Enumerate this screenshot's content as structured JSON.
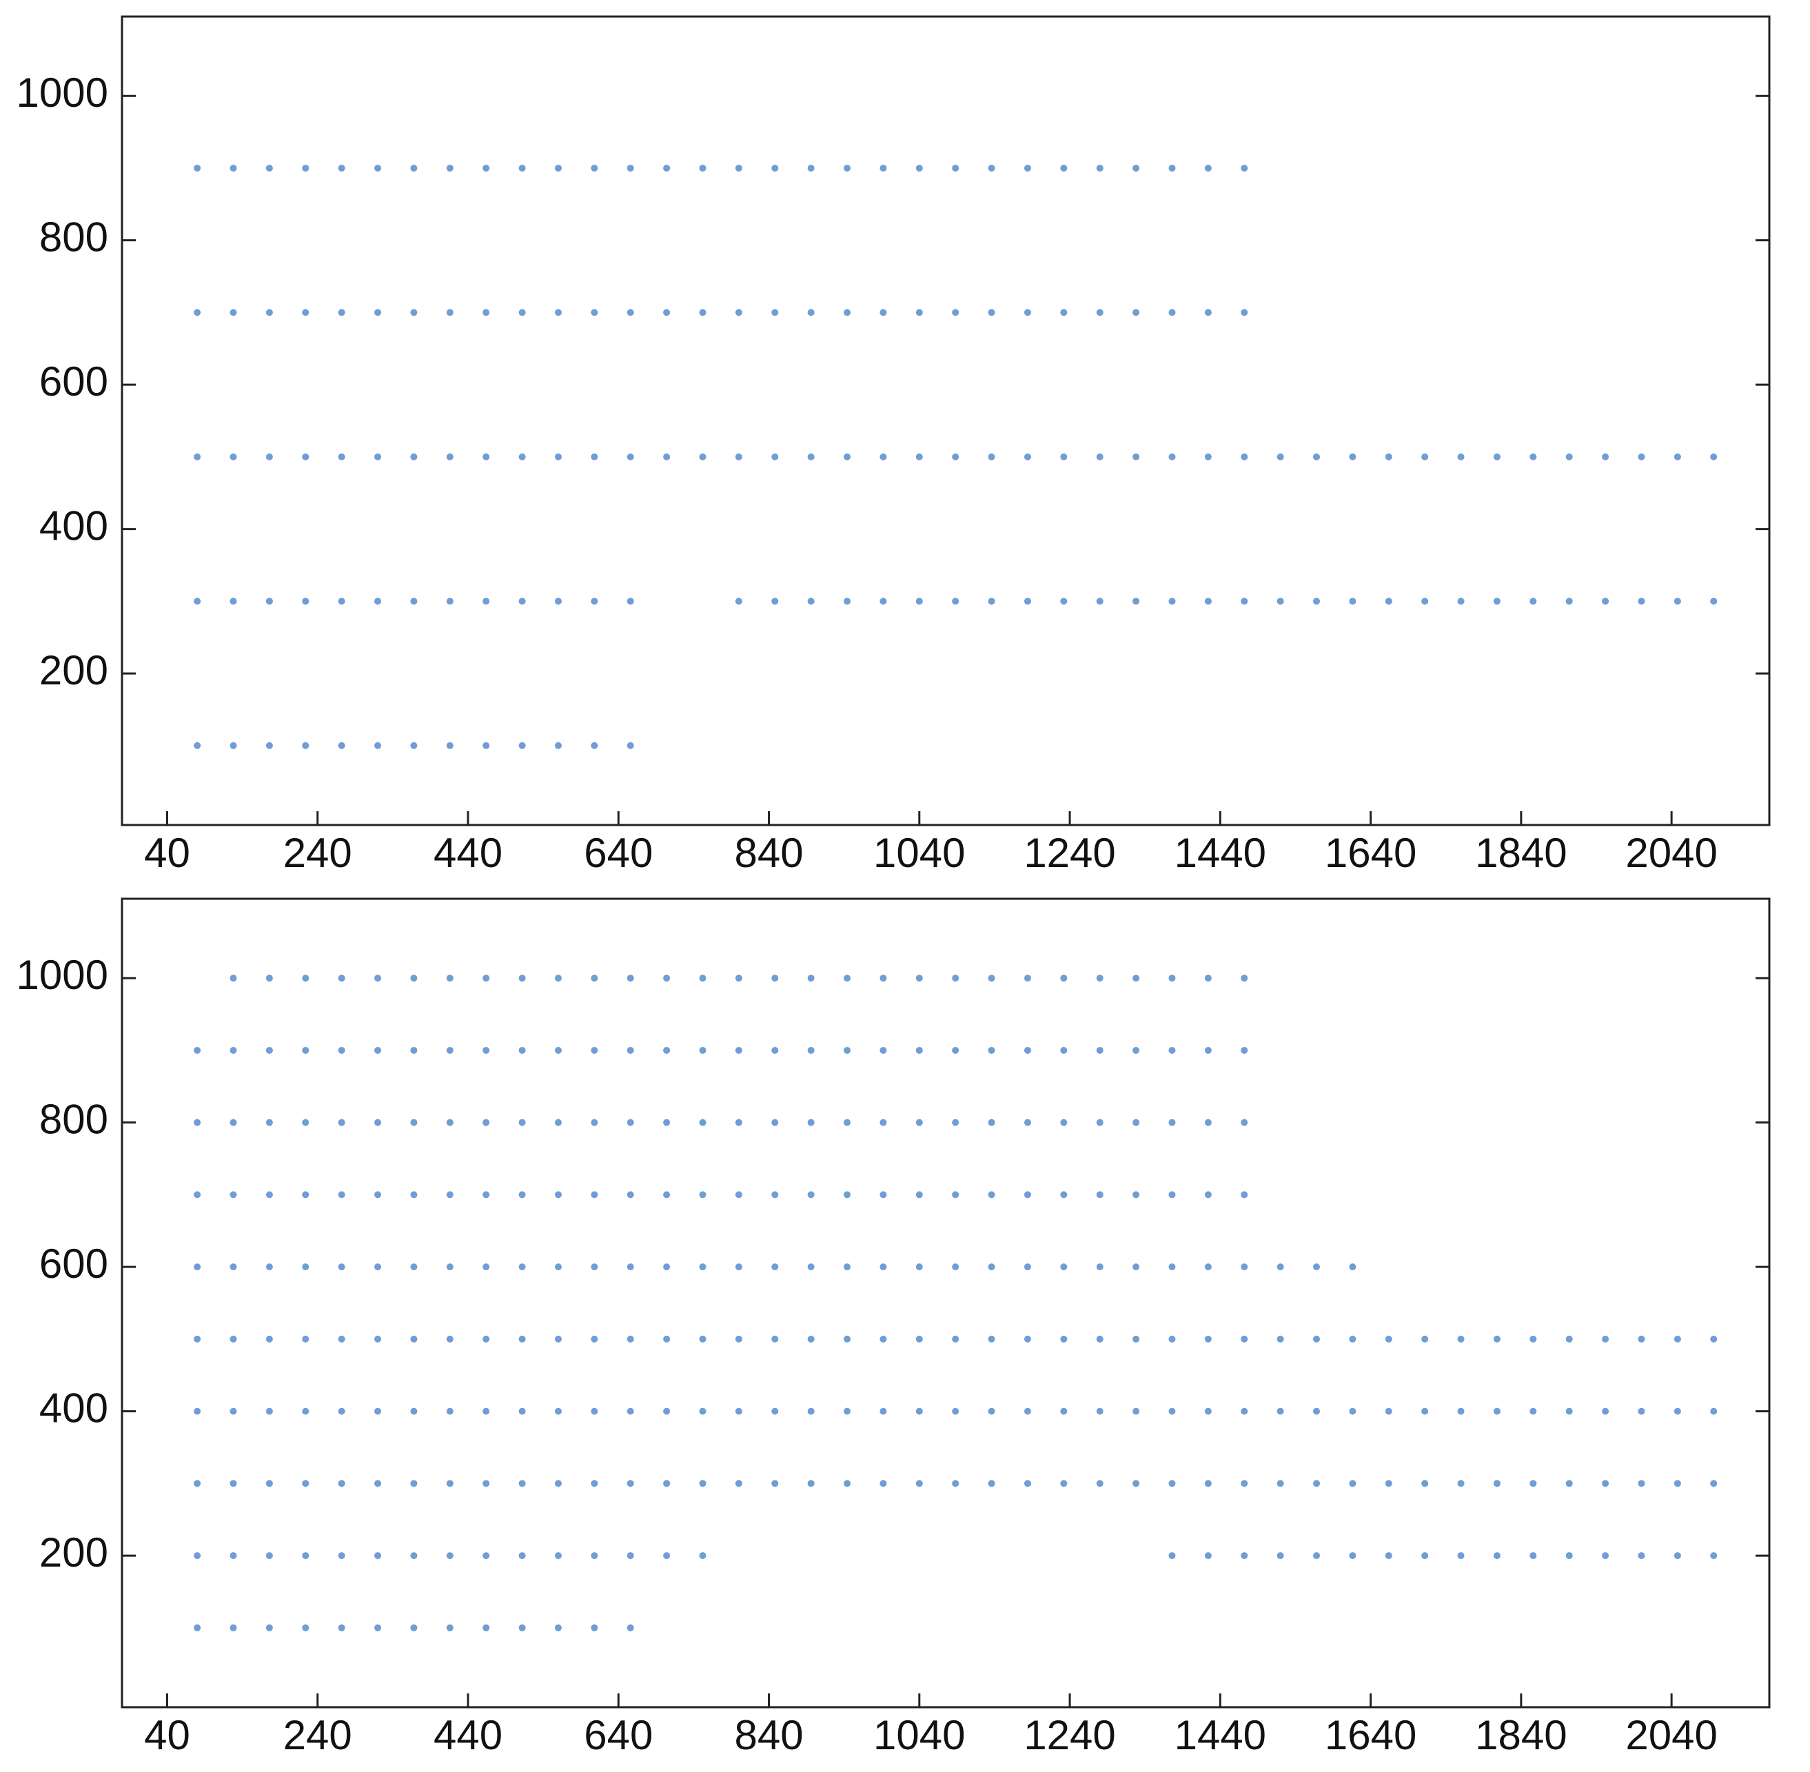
{
  "chart_data": [
    {
      "type": "scatter",
      "color": "#4a86c8",
      "xlim": [
        -20,
        2170
      ],
      "ylim": [
        -10,
        1110
      ],
      "xticks": [
        40,
        240,
        440,
        640,
        840,
        1040,
        1240,
        1440,
        1640,
        1840,
        2040
      ],
      "yticks": [
        200,
        400,
        600,
        800,
        1000
      ],
      "x": [
        80,
        80,
        80,
        80,
        80,
        128,
        128,
        128,
        128,
        128,
        176,
        176,
        176,
        176,
        176,
        224,
        224,
        224,
        224,
        224,
        272,
        272,
        272,
        272,
        272,
        320,
        320,
        320,
        320,
        320,
        368,
        368,
        368,
        368,
        368,
        416,
        416,
        416,
        416,
        416,
        464,
        464,
        464,
        464,
        464,
        512,
        512,
        512,
        512,
        512,
        560,
        560,
        560,
        560,
        560,
        608,
        608,
        608,
        608,
        608,
        656,
        656,
        656,
        656,
        656,
        704,
        704,
        704,
        752,
        752,
        752,
        800,
        800,
        800,
        800,
        848,
        848,
        848,
        848,
        896,
        896,
        896,
        896,
        944,
        944,
        944,
        944,
        992,
        992,
        992,
        992,
        1040,
        1040,
        1040,
        1040,
        1088,
        1088,
        1088,
        1088,
        1136,
        1136,
        1136,
        1136,
        1184,
        1184,
        1184,
        1184,
        1232,
        1232,
        1232,
        1232,
        1280,
        1280,
        1280,
        1280,
        1328,
        1328,
        1328,
        1328,
        1376,
        1376,
        1376,
        1376,
        1424,
        1424,
        1424,
        1424,
        1472,
        1472,
        1472,
        1472,
        1520,
        1520,
        1568,
        1568,
        1616,
        1616,
        1664,
        1664,
        1712,
        1712,
        1760,
        1760,
        1808,
        1808,
        1856,
        1856,
        1904,
        1904,
        1952,
        1952,
        2000,
        2000,
        2048,
        2048,
        2096,
        2096
      ],
      "y": [
        100,
        300,
        500,
        700,
        900,
        100,
        300,
        500,
        700,
        900,
        100,
        300,
        500,
        700,
        900,
        100,
        300,
        500,
        700,
        900,
        100,
        300,
        500,
        700,
        900,
        100,
        300,
        500,
        700,
        900,
        100,
        300,
        500,
        700,
        900,
        100,
        300,
        500,
        700,
        900,
        100,
        300,
        500,
        700,
        900,
        100,
        300,
        500,
        700,
        900,
        100,
        300,
        500,
        700,
        900,
        100,
        300,
        500,
        700,
        900,
        100,
        300,
        500,
        700,
        900,
        500,
        700,
        900,
        500,
        700,
        900,
        300,
        500,
        700,
        900,
        300,
        500,
        700,
        900,
        300,
        500,
        700,
        900,
        300,
        500,
        700,
        900,
        300,
        500,
        700,
        900,
        300,
        500,
        700,
        900,
        300,
        500,
        700,
        900,
        300,
        500,
        700,
        900,
        300,
        500,
        700,
        900,
        300,
        500,
        700,
        900,
        300,
        500,
        700,
        900,
        300,
        500,
        700,
        900,
        300,
        500,
        700,
        900,
        300,
        500,
        700,
        900,
        300,
        500,
        700,
        900,
        300,
        500,
        300,
        500,
        300,
        500,
        300,
        500,
        300,
        500,
        300,
        500,
        300,
        500,
        300,
        500,
        300,
        500,
        300,
        500,
        300,
        500,
        300,
        500,
        300,
        500
      ]
    },
    {
      "type": "scatter",
      "color": "#4a86c8",
      "xlim": [
        -20,
        2170
      ],
      "ylim": [
        -10,
        1110
      ],
      "xticks": [
        40,
        240,
        440,
        640,
        840,
        1040,
        1240,
        1440,
        1640,
        1840,
        2040
      ],
      "yticks": [
        200,
        400,
        600,
        800,
        1000
      ],
      "x": [
        80,
        80,
        80,
        80,
        80,
        80,
        80,
        80,
        80,
        128,
        128,
        128,
        128,
        128,
        128,
        128,
        128,
        128,
        128,
        176,
        176,
        176,
        176,
        176,
        176,
        176,
        176,
        176,
        176,
        224,
        224,
        224,
        224,
        224,
        224,
        224,
        224,
        224,
        224,
        272,
        272,
        272,
        272,
        272,
        272,
        272,
        272,
        272,
        272,
        320,
        320,
        320,
        320,
        320,
        320,
        320,
        320,
        320,
        320,
        368,
        368,
        368,
        368,
        368,
        368,
        368,
        368,
        368,
        368,
        416,
        416,
        416,
        416,
        416,
        416,
        416,
        416,
        416,
        416,
        464,
        464,
        464,
        464,
        464,
        464,
        464,
        464,
        464,
        464,
        512,
        512,
        512,
        512,
        512,
        512,
        512,
        512,
        512,
        512,
        560,
        560,
        560,
        560,
        560,
        560,
        560,
        560,
        560,
        560,
        608,
        608,
        608,
        608,
        608,
        608,
        608,
        608,
        608,
        608,
        656,
        656,
        656,
        656,
        656,
        656,
        656,
        656,
        656,
        656,
        704,
        704,
        704,
        704,
        704,
        704,
        704,
        704,
        704,
        752,
        752,
        752,
        752,
        752,
        752,
        752,
        752,
        752,
        800,
        800,
        800,
        800,
        800,
        800,
        800,
        800,
        848,
        848,
        848,
        848,
        848,
        848,
        848,
        848,
        896,
        896,
        896,
        896,
        896,
        896,
        896,
        896,
        944,
        944,
        944,
        944,
        944,
        944,
        944,
        944,
        992,
        992,
        992,
        992,
        992,
        992,
        992,
        992,
        1040,
        1040,
        1040,
        1040,
        1040,
        1040,
        1040,
        1040,
        1088,
        1088,
        1088,
        1088,
        1088,
        1088,
        1088,
        1088,
        1136,
        1136,
        1136,
        1136,
        1136,
        1136,
        1136,
        1136,
        1184,
        1184,
        1184,
        1184,
        1184,
        1184,
        1184,
        1184,
        1232,
        1232,
        1232,
        1232,
        1232,
        1232,
        1232,
        1232,
        1280,
        1280,
        1280,
        1280,
        1280,
        1280,
        1280,
        1280,
        1328,
        1328,
        1328,
        1328,
        1328,
        1328,
        1328,
        1328,
        1376,
        1376,
        1376,
        1376,
        1376,
        1376,
        1376,
        1376,
        1376,
        1424,
        1424,
        1424,
        1424,
        1424,
        1424,
        1424,
        1424,
        1424,
        1472,
        1472,
        1472,
        1472,
        1472,
        1472,
        1472,
        1472,
        1472,
        1520,
        1520,
        1520,
        1520,
        1520,
        1568,
        1568,
        1568,
        1568,
        1568,
        1616,
        1616,
        1616,
        1616,
        1616,
        1664,
        1664,
        1664,
        1664,
        1712,
        1712,
        1712,
        1712,
        1760,
        1760,
        1760,
        1760,
        1808,
        1808,
        1808,
        1808,
        1856,
        1856,
        1856,
        1856,
        1904,
        1904,
        1904,
        1904,
        1952,
        1952,
        1952,
        1952,
        2000,
        2000,
        2000,
        2000,
        2048,
        2048,
        2048,
        2048,
        2096,
        2096,
        2096,
        2096
      ],
      "y": [
        100,
        200,
        300,
        400,
        500,
        600,
        700,
        800,
        900,
        100,
        200,
        300,
        400,
        500,
        600,
        700,
        800,
        900,
        1000,
        100,
        200,
        300,
        400,
        500,
        600,
        700,
        800,
        900,
        1000,
        100,
        200,
        300,
        400,
        500,
        600,
        700,
        800,
        900,
        1000,
        100,
        200,
        300,
        400,
        500,
        600,
        700,
        800,
        900,
        1000,
        100,
        200,
        300,
        400,
        500,
        600,
        700,
        800,
        900,
        1000,
        100,
        200,
        300,
        400,
        500,
        600,
        700,
        800,
        900,
        1000,
        100,
        200,
        300,
        400,
        500,
        600,
        700,
        800,
        900,
        1000,
        100,
        200,
        300,
        400,
        500,
        600,
        700,
        800,
        900,
        1000,
        100,
        200,
        300,
        400,
        500,
        600,
        700,
        800,
        900,
        1000,
        100,
        200,
        300,
        400,
        500,
        600,
        700,
        800,
        900,
        1000,
        100,
        200,
        300,
        400,
        500,
        600,
        700,
        800,
        900,
        1000,
        100,
        200,
        300,
        400,
        500,
        600,
        700,
        800,
        900,
        1000,
        200,
        300,
        400,
        500,
        600,
        700,
        800,
        900,
        1000,
        200,
        300,
        400,
        500,
        600,
        700,
        800,
        900,
        1000,
        300,
        400,
        500,
        600,
        700,
        800,
        900,
        1000,
        300,
        400,
        500,
        600,
        700,
        800,
        900,
        1000,
        300,
        400,
        500,
        600,
        700,
        800,
        900,
        1000,
        300,
        400,
        500,
        600,
        700,
        800,
        900,
        1000,
        300,
        400,
        500,
        600,
        700,
        800,
        900,
        1000,
        300,
        400,
        500,
        600,
        700,
        800,
        900,
        1000,
        300,
        400,
        500,
        600,
        700,
        800,
        900,
        1000,
        300,
        400,
        500,
        600,
        700,
        800,
        900,
        1000,
        300,
        400,
        500,
        600,
        700,
        800,
        900,
        1000,
        300,
        400,
        500,
        600,
        700,
        800,
        900,
        1000,
        300,
        400,
        500,
        600,
        700,
        800,
        900,
        1000,
        300,
        400,
        500,
        600,
        700,
        800,
        900,
        1000,
        200,
        300,
        400,
        500,
        600,
        700,
        800,
        900,
        1000,
        200,
        300,
        400,
        500,
        600,
        700,
        800,
        900,
        1000,
        200,
        300,
        400,
        500,
        600,
        700,
        800,
        900,
        1000,
        200,
        300,
        400,
        500,
        600,
        200,
        300,
        400,
        500,
        600,
        200,
        300,
        400,
        500,
        600,
        200,
        300,
        400,
        500,
        200,
        300,
        400,
        500,
        200,
        300,
        400,
        500,
        200,
        300,
        400,
        500,
        200,
        300,
        400,
        500,
        200,
        300,
        400,
        500,
        200,
        300,
        400,
        500,
        200,
        300,
        400,
        500,
        200,
        300,
        400,
        500,
        200,
        300,
        400,
        500
      ]
    }
  ]
}
